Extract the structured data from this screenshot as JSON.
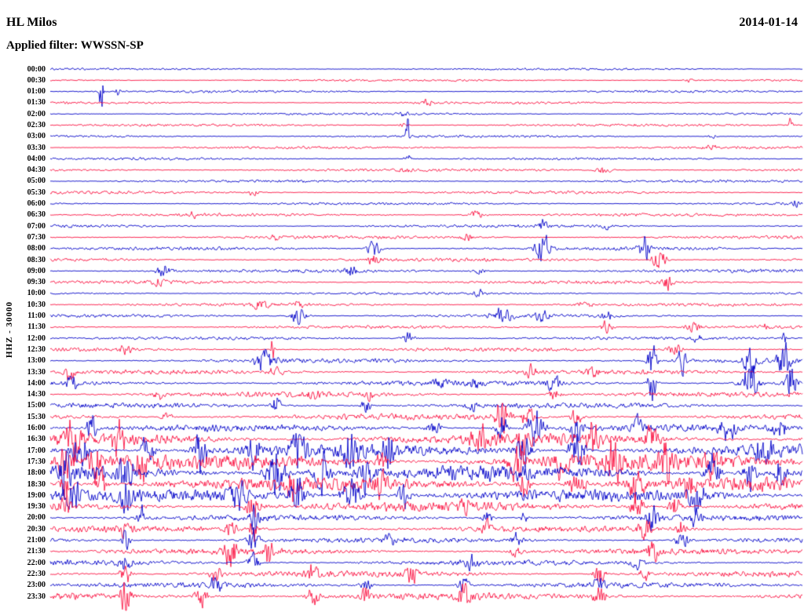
{
  "header": {
    "station": "HL Milos",
    "date": "2014-01-14",
    "filter_label": "Applied filter: WWSSN-SP"
  },
  "chart_data": {
    "type": "line",
    "subtype": "helicorder-seismogram",
    "title": "HL Milos",
    "date": "2014-01-14",
    "filter": "WWSSN-SP",
    "ylabel": "HHZ - 30000",
    "minutes_per_row": 30,
    "legend_position": "none",
    "grid": false,
    "trace_colors": {
      "even": "#0000c8",
      "odd": "#fa1040"
    },
    "x_range_minutes": [
      0,
      30
    ],
    "rows": [
      {
        "t": "00:00",
        "amp": 1.2,
        "events": []
      },
      {
        "t": "00:30",
        "amp": 1.3,
        "events": [
          [
            0.85,
            2.5,
            6
          ]
        ]
      },
      {
        "t": "01:00",
        "amp": 1.4,
        "events": [
          [
            0.068,
            45,
            2
          ],
          [
            0.09,
            6,
            3
          ]
        ]
      },
      {
        "t": "01:30",
        "amp": 1.4,
        "events": [
          [
            0.5,
            4,
            10
          ]
        ]
      },
      {
        "t": "02:00",
        "amp": 1.4,
        "events": [
          [
            0.47,
            3,
            6
          ]
        ]
      },
      {
        "t": "02:30",
        "amp": 1.5,
        "events": [
          [
            0.985,
            12,
            2.5
          ],
          [
            0.47,
            4,
            5
          ]
        ]
      },
      {
        "t": "03:00",
        "amp": 1.5,
        "events": [
          [
            0.475,
            28,
            2
          ],
          [
            0.88,
            3,
            6
          ]
        ]
      },
      {
        "t": "03:30",
        "amp": 1.5,
        "events": [
          [
            0.88,
            4,
            8
          ]
        ]
      },
      {
        "t": "04:00",
        "amp": 1.5,
        "events": [
          [
            0.475,
            7,
            4
          ]
        ]
      },
      {
        "t": "04:30",
        "amp": 1.7,
        "events": [
          [
            0.47,
            4,
            6
          ],
          [
            0.735,
            5,
            10
          ]
        ]
      },
      {
        "t": "05:00",
        "amp": 1.5,
        "events": []
      },
      {
        "t": "05:30",
        "amp": 1.7,
        "events": [
          [
            0.27,
            4,
            8
          ]
        ]
      },
      {
        "t": "06:00",
        "amp": 1.5,
        "events": [
          [
            0.99,
            5,
            4
          ]
        ]
      },
      {
        "t": "06:30",
        "amp": 1.8,
        "events": [
          [
            0.565,
            6,
            10
          ],
          [
            0.19,
            4,
            4
          ]
        ]
      },
      {
        "t": "07:00",
        "amp": 1.8,
        "events": [
          [
            0.655,
            9,
            5
          ],
          [
            0.74,
            4,
            6
          ]
        ]
      },
      {
        "t": "07:30",
        "amp": 1.8,
        "events": [
          [
            0.555,
            6,
            8
          ],
          [
            0.3,
            3,
            5
          ]
        ]
      },
      {
        "t": "08:00",
        "amp": 2,
        "events": [
          [
            0.43,
            12,
            8
          ],
          [
            0.655,
            24,
            8
          ],
          [
            0.79,
            18,
            7
          ]
        ]
      },
      {
        "t": "08:30",
        "amp": 2,
        "events": [
          [
            0.43,
            8,
            7
          ],
          [
            0.81,
            16,
            8
          ]
        ]
      },
      {
        "t": "09:00",
        "amp": 2,
        "events": [
          [
            0.15,
            8,
            9
          ],
          [
            0.4,
            8,
            7
          ],
          [
            0.57,
            5,
            7
          ]
        ]
      },
      {
        "t": "09:30",
        "amp": 2,
        "events": [
          [
            0.145,
            6,
            7
          ],
          [
            0.82,
            10,
            7
          ]
        ]
      },
      {
        "t": "10:00",
        "amp": 1.5,
        "events": [
          [
            0.57,
            4,
            7
          ]
        ]
      },
      {
        "t": "10:30",
        "amp": 1.8,
        "events": [
          [
            0.28,
            6,
            12
          ],
          [
            0.33,
            5,
            7
          ],
          [
            0.71,
            5,
            9
          ]
        ]
      },
      {
        "t": "11:00",
        "amp": 1.8,
        "events": [
          [
            0.33,
            10,
            10
          ],
          [
            0.6,
            9,
            14
          ],
          [
            0.655,
            8,
            9
          ],
          [
            0.74,
            6,
            7
          ]
        ]
      },
      {
        "t": "11:30",
        "amp": 1.8,
        "events": [
          [
            0.74,
            10,
            7
          ],
          [
            0.855,
            6,
            9
          ],
          [
            0.95,
            5,
            7
          ]
        ]
      },
      {
        "t": "12:00",
        "amp": 1.8,
        "events": [
          [
            0.475,
            8,
            9
          ],
          [
            0.86,
            5,
            6
          ],
          [
            0.975,
            14,
            2.5
          ]
        ]
      },
      {
        "t": "12:30",
        "amp": 2.2,
        "events": [
          [
            0.1,
            5,
            9
          ],
          [
            0.295,
            22,
            2.5
          ],
          [
            0.83,
            8,
            9
          ]
        ]
      },
      {
        "t": "13:00",
        "amp": 2.5,
        "events": [
          [
            0.285,
            18,
            11
          ],
          [
            0.8,
            26,
            5
          ],
          [
            0.84,
            18,
            5
          ],
          [
            0.93,
            22,
            9
          ],
          [
            0.975,
            26,
            7
          ]
        ]
      },
      {
        "t": "13:30",
        "amp": 2.5,
        "events": [
          [
            0.025,
            12,
            7
          ],
          [
            0.3,
            8,
            9
          ],
          [
            0.64,
            10,
            7
          ],
          [
            0.72,
            8,
            7
          ]
        ]
      },
      {
        "t": "14:00",
        "amp": 3,
        "events": [
          [
            0.03,
            10,
            7
          ],
          [
            0.52,
            6,
            7
          ],
          [
            0.565,
            8,
            6
          ],
          [
            0.67,
            10,
            10
          ],
          [
            0.8,
            22,
            6
          ],
          [
            0.93,
            28,
            10
          ],
          [
            0.985,
            28,
            6
          ]
        ]
      },
      {
        "t": "14:30",
        "amp": 3,
        "events": [
          [
            0.145,
            8,
            6
          ],
          [
            0.35,
            6,
            7
          ],
          [
            0.425,
            8,
            6
          ],
          [
            0.67,
            8,
            7
          ]
        ]
      },
      {
        "t": "15:00",
        "amp": 3,
        "events": [
          [
            0.3,
            17,
            5
          ],
          [
            0.42,
            10,
            6
          ],
          [
            0.56,
            6,
            7
          ]
        ]
      },
      {
        "t": "15:30",
        "amp": 3.5,
        "events": [
          [
            0.155,
            8,
            6
          ],
          [
            0.6,
            24,
            9
          ],
          [
            0.635,
            18,
            6
          ],
          [
            0.7,
            12,
            7
          ]
        ]
      },
      {
        "t": "16:00",
        "amp": 4,
        "events": [
          [
            0.055,
            24,
            5
          ],
          [
            0.51,
            10,
            9
          ],
          [
            0.6,
            22,
            7
          ],
          [
            0.645,
            28,
            9
          ],
          [
            0.7,
            22,
            7
          ],
          [
            0.78,
            14,
            7
          ],
          [
            0.9,
            18,
            9
          ],
          [
            0.97,
            22,
            7
          ]
        ]
      },
      {
        "t": "16:30",
        "amp": 6.5,
        "events": [
          [
            0.03,
            22,
            11
          ],
          [
            0.09,
            24,
            9
          ],
          [
            0.57,
            17,
            9
          ],
          [
            0.63,
            20,
            7
          ],
          [
            0.72,
            22,
            9
          ],
          [
            0.8,
            20,
            9
          ]
        ]
      },
      {
        "t": "17:00",
        "amp": 7,
        "events": [
          [
            0.04,
            26,
            9
          ],
          [
            0.13,
            28,
            7
          ],
          [
            0.2,
            26,
            9
          ],
          [
            0.27,
            28,
            7
          ],
          [
            0.33,
            28,
            9
          ],
          [
            0.4,
            30,
            11
          ],
          [
            0.45,
            26,
            7
          ],
          [
            0.63,
            24,
            9
          ],
          [
            0.7,
            28,
            9
          ],
          [
            0.95,
            28,
            11
          ]
        ]
      },
      {
        "t": "17:30",
        "amp": 9,
        "events": [
          [
            0.02,
            26,
            9
          ],
          [
            0.06,
            28,
            7
          ],
          [
            0.12,
            24,
            7
          ],
          [
            0.44,
            18,
            7
          ],
          [
            0.62,
            26,
            9
          ],
          [
            0.68,
            24,
            7
          ],
          [
            0.75,
            28,
            9
          ],
          [
            0.82,
            26,
            7
          ],
          [
            0.88,
            18,
            7
          ]
        ]
      },
      {
        "t": "18:00",
        "amp": 9,
        "events": [
          [
            0.02,
            24,
            7
          ],
          [
            0.1,
            26,
            9
          ],
          [
            0.3,
            28,
            13
          ],
          [
            0.36,
            30,
            9
          ],
          [
            0.42,
            28,
            7
          ],
          [
            0.88,
            24,
            9
          ],
          [
            0.93,
            28,
            7
          ],
          [
            0.97,
            26,
            5
          ]
        ]
      },
      {
        "t": "18:30",
        "amp": 8,
        "events": [
          [
            0.02,
            18,
            7
          ],
          [
            0.07,
            24,
            7
          ],
          [
            0.32,
            18,
            7
          ],
          [
            0.44,
            14,
            7
          ],
          [
            0.63,
            18,
            7
          ],
          [
            0.7,
            20,
            9
          ],
          [
            0.78,
            24,
            9
          ],
          [
            0.85,
            20,
            7
          ]
        ]
      },
      {
        "t": "19:00",
        "amp": 7,
        "events": [
          [
            0.03,
            24,
            9
          ],
          [
            0.1,
            18,
            7
          ],
          [
            0.25,
            26,
            9
          ],
          [
            0.33,
            24,
            9
          ],
          [
            0.4,
            26,
            11
          ],
          [
            0.47,
            18,
            7
          ],
          [
            0.86,
            24,
            9
          ]
        ]
      },
      {
        "t": "19:30",
        "amp": 5.5,
        "events": [
          [
            0.02,
            14,
            7
          ],
          [
            0.27,
            18,
            9
          ],
          [
            0.55,
            9,
            7
          ],
          [
            0.78,
            16,
            9
          ],
          [
            0.83,
            18,
            7
          ]
        ]
      },
      {
        "t": "20:00",
        "amp": 3.5,
        "events": [
          [
            0.12,
            24,
            4
          ],
          [
            0.27,
            18,
            7
          ],
          [
            0.58,
            9,
            7
          ],
          [
            0.63,
            7,
            5
          ],
          [
            0.8,
            16,
            7
          ],
          [
            0.86,
            14,
            7
          ]
        ]
      },
      {
        "t": "20:30",
        "amp": 3.5,
        "events": [
          [
            0.1,
            14,
            5
          ],
          [
            0.24,
            11,
            7
          ],
          [
            0.27,
            24,
            5
          ],
          [
            0.58,
            11,
            7
          ],
          [
            0.79,
            18,
            7
          ],
          [
            0.84,
            14,
            5
          ]
        ]
      },
      {
        "t": "21:00",
        "amp": 3,
        "events": [
          [
            0.1,
            16,
            5
          ],
          [
            0.27,
            18,
            7
          ],
          [
            0.45,
            9,
            7
          ],
          [
            0.62,
            11,
            7
          ],
          [
            0.84,
            16,
            7
          ]
        ]
      },
      {
        "t": "21:30",
        "amp": 3.5,
        "events": [
          [
            0.24,
            26,
            7
          ],
          [
            0.29,
            20,
            5
          ],
          [
            0.62,
            9,
            7
          ],
          [
            0.8,
            14,
            7
          ]
        ]
      },
      {
        "t": "22:00",
        "amp": 3,
        "events": [
          [
            0.1,
            11,
            7
          ],
          [
            0.27,
            14,
            7
          ],
          [
            0.56,
            9,
            7
          ],
          [
            0.78,
            11,
            7
          ]
        ]
      },
      {
        "t": "22:30",
        "amp": 3.5,
        "events": [
          [
            0.1,
            18,
            7
          ],
          [
            0.22,
            14,
            7
          ],
          [
            0.35,
            11,
            7
          ],
          [
            0.48,
            14,
            7
          ],
          [
            0.73,
            16,
            7
          ],
          [
            0.79,
            14,
            5
          ]
        ]
      },
      {
        "t": "23:00",
        "amp": 3,
        "events": [
          [
            0.22,
            11,
            7
          ],
          [
            0.42,
            9,
            7
          ],
          [
            0.55,
            11,
            7
          ],
          [
            0.73,
            9,
            7
          ]
        ]
      },
      {
        "t": "23:30",
        "amp": 4,
        "events": [
          [
            0.1,
            20,
            7
          ],
          [
            0.2,
            16,
            7
          ],
          [
            0.35,
            18,
            7
          ],
          [
            0.42,
            14,
            5
          ],
          [
            0.55,
            16,
            7
          ],
          [
            0.73,
            14,
            7
          ]
        ]
      }
    ]
  }
}
